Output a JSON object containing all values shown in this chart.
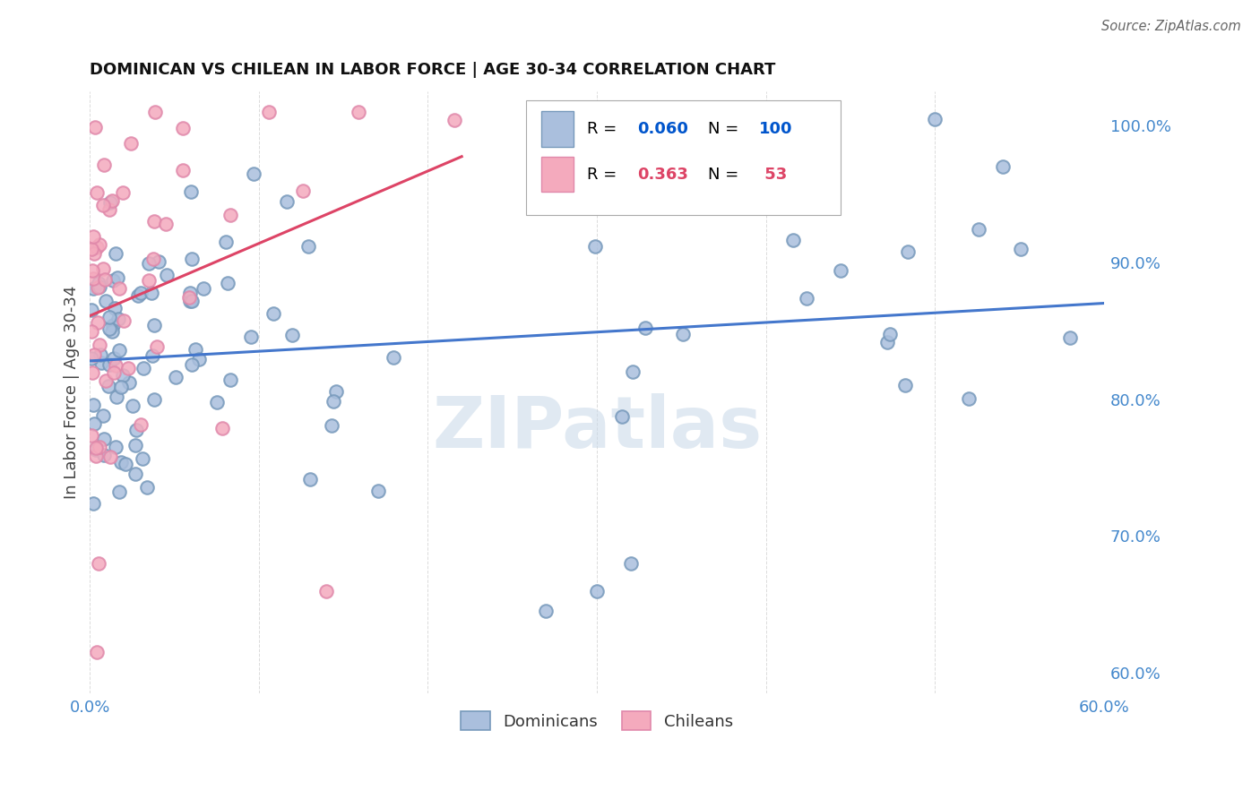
{
  "title": "DOMINICAN VS CHILEAN IN LABOR FORCE | AGE 30-34 CORRELATION CHART",
  "source": "Source: ZipAtlas.com",
  "ylabel": "In Labor Force | Age 30-34",
  "xlim": [
    0.0,
    0.6
  ],
  "ylim": [
    0.585,
    1.025
  ],
  "xticks": [
    0.0,
    0.1,
    0.2,
    0.3,
    0.4,
    0.5,
    0.6
  ],
  "xticklabels": [
    "0.0%",
    "",
    "",
    "",
    "",
    "",
    "60.0%"
  ],
  "yticks_right": [
    0.6,
    0.7,
    0.8,
    0.9,
    1.0
  ],
  "ytick_right_labels": [
    "60.0%",
    "70.0%",
    "80.0%",
    "90.0%",
    "100.0%"
  ],
  "blue_scatter_color": "#AABFDD",
  "blue_edge_color": "#7799BB",
  "pink_scatter_color": "#F4AABD",
  "pink_edge_color": "#E088AA",
  "blue_line_color": "#4477CC",
  "pink_line_color": "#DD4466",
  "legend_color_blue": "#0055CC",
  "legend_color_pink": "#DD4466",
  "tick_color": "#4488CC",
  "dominicans_label": "Dominicans",
  "chileans_label": "Chileans",
  "watermark": "ZIPatlas",
  "background_color": "#FFFFFF",
  "grid_color": "#CCCCCC"
}
